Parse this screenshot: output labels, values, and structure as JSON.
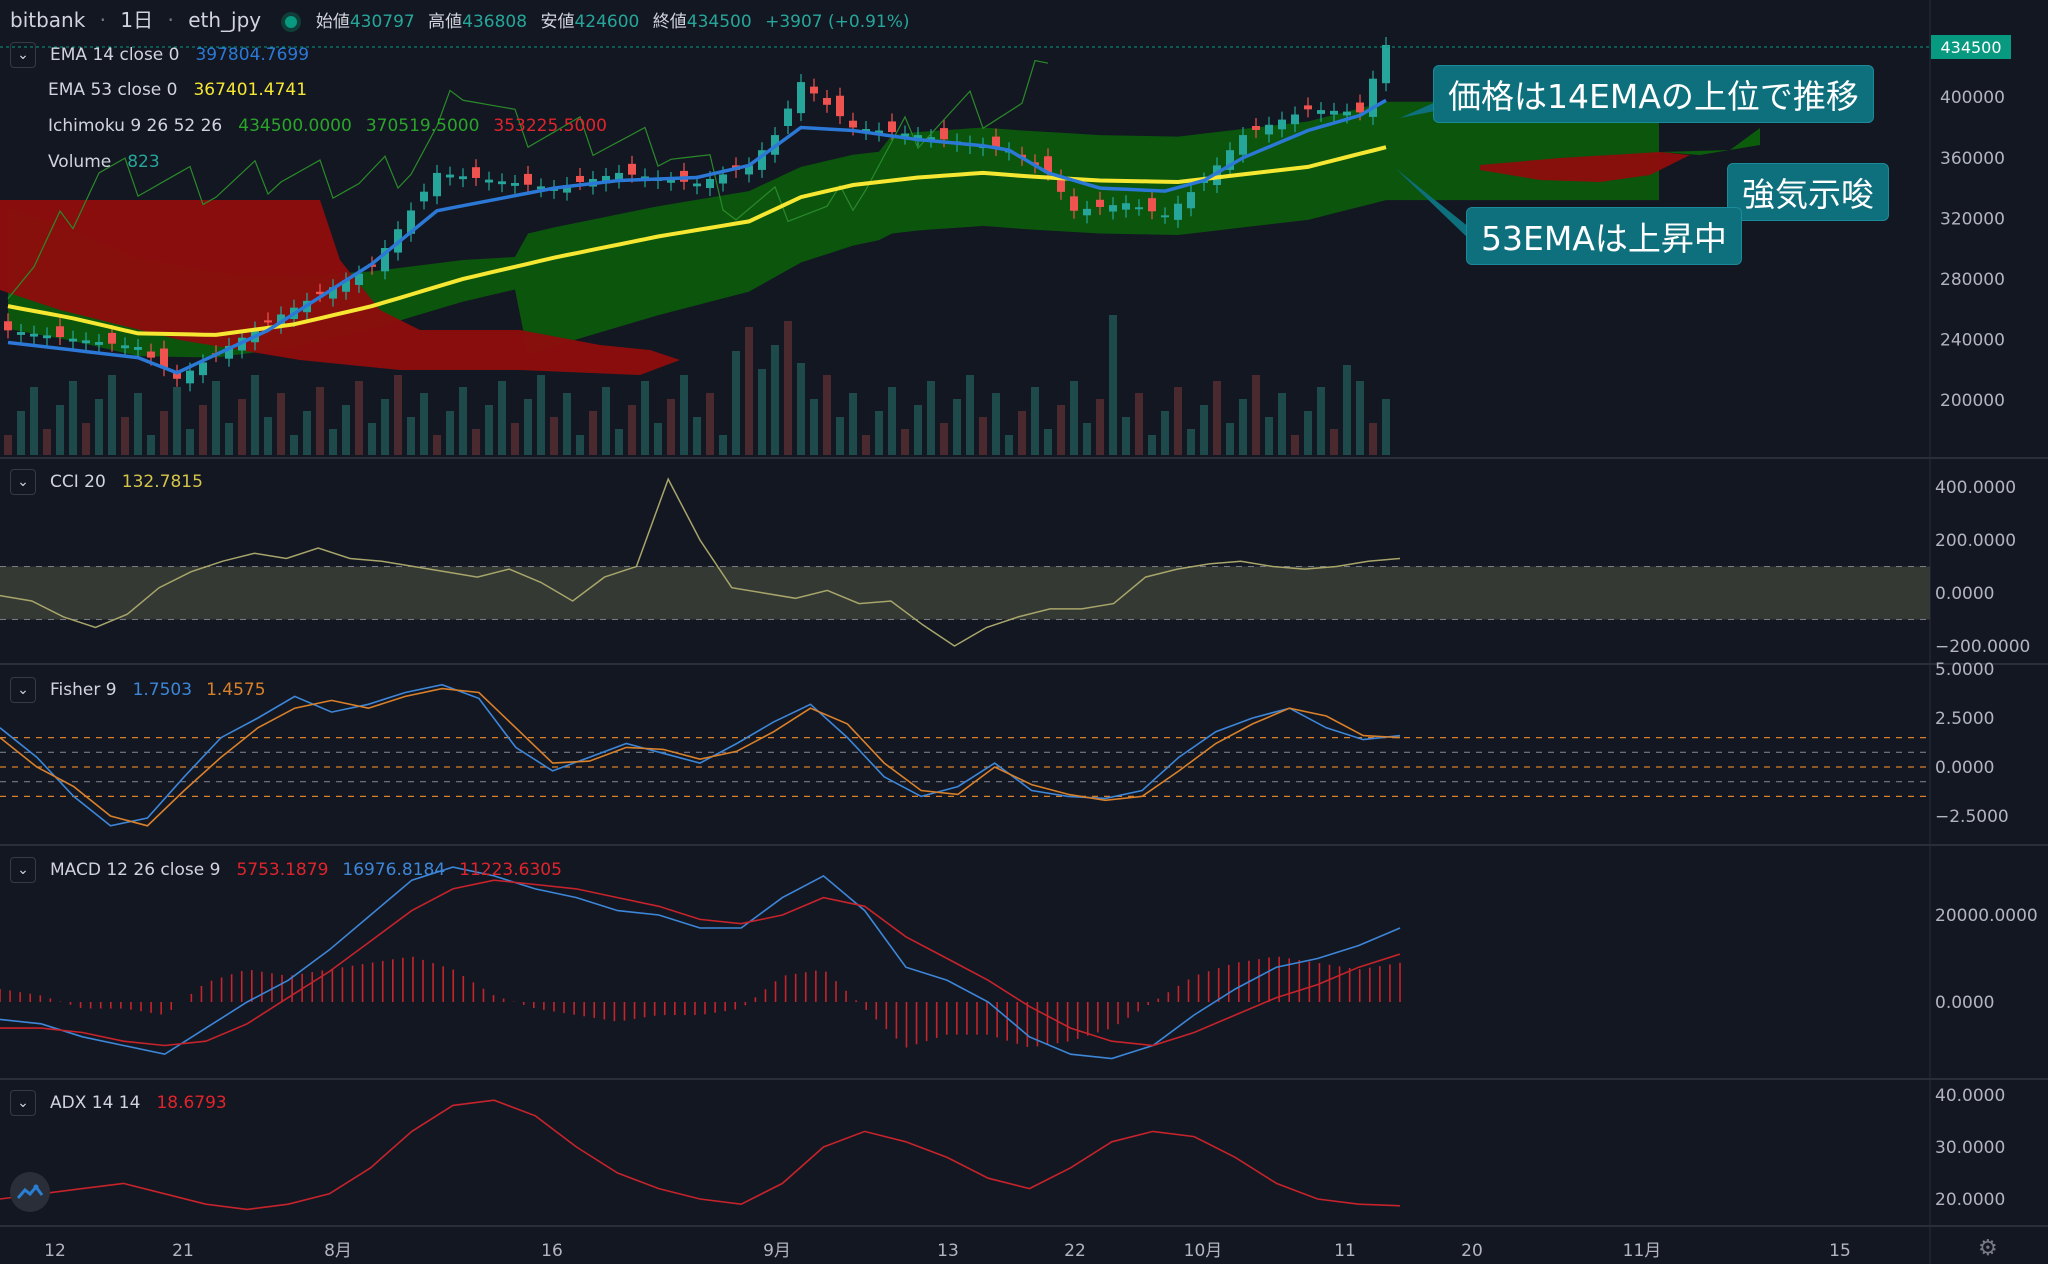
{
  "header": {
    "exchange": "bitbank",
    "interval": "1日",
    "symbol": "eth_jpy",
    "open_label": "始値",
    "open": "430797",
    "high_label": "高値",
    "high": "436808",
    "low_label": "安値",
    "low": "424600",
    "close_label": "終値",
    "close": "434500",
    "change": "+3907 (+0.91%)"
  },
  "legend": {
    "ema14": {
      "name": "EMA 14 close 0",
      "value": "397804.7699"
    },
    "ema53": {
      "name": "EMA 53 close 0",
      "value": "367401.4741"
    },
    "ichimoku": {
      "name": "Ichimoku 9 26 52 26",
      "v1": "434500.0000",
      "v2": "370519.5000",
      "v3": "353225.5000"
    },
    "volume": {
      "name": "Volume",
      "value": "823"
    },
    "cci": {
      "name": "CCI 20",
      "value": "132.7815"
    },
    "fisher": {
      "name": "Fisher 9",
      "v1": "1.7503",
      "v2": "1.4575"
    },
    "macd": {
      "name": "MACD 12 26 close 9",
      "v1": "5753.1879",
      "v2": "16976.8184",
      "v3": "11223.6305"
    },
    "adx": {
      "name": "ADX 14 14",
      "value": "18.6793"
    }
  },
  "annotations": {
    "a1": "価格は14EMAの上位で推移",
    "a2": "強気示唆",
    "a3": "53EMAは上昇中"
  },
  "price_tag": "434500",
  "colors": {
    "bg": "#131722",
    "up": "#26a69a",
    "down": "#ef5350",
    "ema14": "#2b78d6",
    "ema53": "#f5e732",
    "cloud_up": "#0b5c0b",
    "cloud_down": "#8f0d0d",
    "fisher1": "#3d86d8",
    "fisher2": "#d9802a",
    "macd": "#3d86d8",
    "signal": "#c6232b",
    "adx": "#c6232b"
  },
  "chart_data": [
    {
      "type": "candlestick",
      "title": "eth_jpy 1日",
      "x_tick_labels": [
        "12",
        "21",
        "8月",
        "16",
        "9月",
        "13",
        "22",
        "10月",
        "11",
        "20",
        "11月",
        "15"
      ],
      "y_ticks": [
        "434500",
        "400000",
        "360000",
        "320000",
        "280000",
        "240000",
        "200000"
      ],
      "series": {
        "close_pts": [
          [
            0,
            246000
          ],
          [
            10,
            235000
          ],
          [
            13,
            214000
          ],
          [
            20,
            252000
          ],
          [
            28,
            288000
          ],
          [
            33,
            350000
          ],
          [
            42,
            340000
          ],
          [
            47,
            350000
          ],
          [
            53,
            343000
          ],
          [
            57,
            355000
          ],
          [
            59,
            375000
          ],
          [
            61,
            410000
          ],
          [
            65,
            380000
          ],
          [
            70,
            375000
          ],
          [
            75,
            368000
          ],
          [
            77,
            365000
          ],
          [
            80,
            350000
          ],
          [
            82,
            325000
          ],
          [
            86,
            330000
          ],
          [
            89,
            322000
          ],
          [
            92,
            345000
          ],
          [
            95,
            375000
          ],
          [
            100,
            392000
          ],
          [
            104,
            390000
          ],
          [
            106,
            434500
          ]
        ],
        "ema14_pts": [
          [
            0,
            238000
          ],
          [
            10,
            228000
          ],
          [
            13,
            218000
          ],
          [
            20,
            246000
          ],
          [
            28,
            290000
          ],
          [
            33,
            325000
          ],
          [
            42,
            340000
          ],
          [
            47,
            345000
          ],
          [
            53,
            347000
          ],
          [
            57,
            355000
          ],
          [
            61,
            380000
          ],
          [
            65,
            378000
          ],
          [
            70,
            372000
          ],
          [
            75,
            368000
          ],
          [
            77,
            365000
          ],
          [
            80,
            350000
          ],
          [
            84,
            340000
          ],
          [
            89,
            338000
          ],
          [
            92,
            345000
          ],
          [
            95,
            360000
          ],
          [
            100,
            378000
          ],
          [
            104,
            388000
          ],
          [
            106,
            398000
          ]
        ],
        "ema53_pts": [
          [
            0,
            262000
          ],
          [
            5,
            254000
          ],
          [
            10,
            244000
          ],
          [
            16,
            243000
          ],
          [
            22,
            250000
          ],
          [
            28,
            262000
          ],
          [
            35,
            280000
          ],
          [
            42,
            294000
          ],
          [
            50,
            308000
          ],
          [
            57,
            318000
          ],
          [
            61,
            334000
          ],
          [
            65,
            342000
          ],
          [
            70,
            347000
          ],
          [
            75,
            350000
          ],
          [
            78,
            348000
          ],
          [
            84,
            345000
          ],
          [
            90,
            344000
          ],
          [
            95,
            349000
          ],
          [
            100,
            354000
          ],
          [
            106,
            367000
          ]
        ]
      }
    },
    {
      "type": "line",
      "title": "CCI 20",
      "y_ticks": [
        "400.0000",
        "200.0000",
        "0.0000",
        "−200.0000"
      ],
      "band": [
        -100,
        100
      ],
      "values": [
        -10,
        -30,
        -90,
        -130,
        -80,
        20,
        80,
        120,
        150,
        130,
        170,
        130,
        120,
        100,
        80,
        60,
        90,
        40,
        -30,
        60,
        100,
        430,
        200,
        20,
        0,
        -20,
        10,
        -40,
        -30,
        -120,
        -200,
        -130,
        -90,
        -60,
        -60,
        -40,
        60,
        90,
        110,
        120,
        100,
        90,
        100,
        120,
        130
      ]
    },
    {
      "type": "line",
      "title": "Fisher 9",
      "y_ticks": [
        "5.0000",
        "2.5000",
        "0.0000",
        "−2.5000"
      ],
      "series": [
        {
          "name": "fisher",
          "values": [
            2.0,
            0.5,
            -1.5,
            -3.0,
            -2.6,
            -0.5,
            1.5,
            2.5,
            3.6,
            2.8,
            3.2,
            3.8,
            4.2,
            3.5,
            1.0,
            -0.2,
            0.5,
            1.2,
            0.7,
            0.2,
            1.2,
            2.3,
            3.2,
            1.5,
            -0.5,
            -1.5,
            -1.0,
            0.2,
            -1.2,
            -1.5,
            -1.6,
            -1.2,
            0.5,
            1.8,
            2.5,
            3.0,
            2.0,
            1.4,
            1.6
          ]
        },
        {
          "name": "trigger",
          "values": [
            1.5,
            0.0,
            -1.0,
            -2.5,
            -3.0,
            -1.2,
            0.5,
            2.0,
            3.0,
            3.4,
            3.0,
            3.6,
            4.0,
            3.8,
            2.0,
            0.2,
            0.3,
            1.0,
            0.9,
            0.4,
            0.8,
            1.8,
            3.0,
            2.2,
            0.2,
            -1.2,
            -1.4,
            0.0,
            -0.9,
            -1.4,
            -1.7,
            -1.5,
            -0.2,
            1.2,
            2.2,
            3.0,
            2.6,
            1.6,
            1.5
          ]
        }
      ],
      "levels": [
        1.5,
        0.75,
        0,
        -0.75,
        -1.5
      ]
    },
    {
      "type": "line",
      "title": "MACD 12 26 close 9",
      "y_ticks": [
        "20000.0000",
        "0.0000"
      ],
      "series": [
        {
          "name": "macd",
          "values": [
            -4000,
            -5000,
            -8000,
            -10000,
            -12000,
            -6000,
            0,
            5000,
            12000,
            20000,
            28000,
            31000,
            29000,
            26000,
            24000,
            21000,
            20000,
            17000,
            17000,
            24000,
            29000,
            21000,
            8000,
            5000,
            0,
            -8000,
            -12000,
            -13000,
            -10000,
            -3000,
            3000,
            8000,
            10000,
            13000,
            17000
          ]
        },
        {
          "name": "signal",
          "values": [
            -6000,
            -6000,
            -7000,
            -9000,
            -10000,
            -9000,
            -5000,
            1000,
            7000,
            14000,
            21000,
            26000,
            28000,
            27000,
            26000,
            24000,
            22000,
            19000,
            18000,
            20000,
            24000,
            22000,
            15000,
            10000,
            5000,
            -1000,
            -6000,
            -9000,
            -10000,
            -7000,
            -3000,
            1000,
            4000,
            8000,
            11000
          ]
        }
      ]
    },
    {
      "type": "line",
      "title": "ADX 14 14",
      "y_ticks": [
        "40.0000",
        "30.0000",
        "20.0000"
      ],
      "values": [
        20,
        21,
        22,
        23,
        21,
        19,
        18,
        19,
        21,
        26,
        33,
        38,
        39,
        36,
        30,
        25,
        22,
        20,
        19,
        23,
        30,
        33,
        31,
        28,
        24,
        22,
        26,
        31,
        33,
        32,
        28,
        23,
        20,
        19,
        18.7
      ]
    }
  ]
}
